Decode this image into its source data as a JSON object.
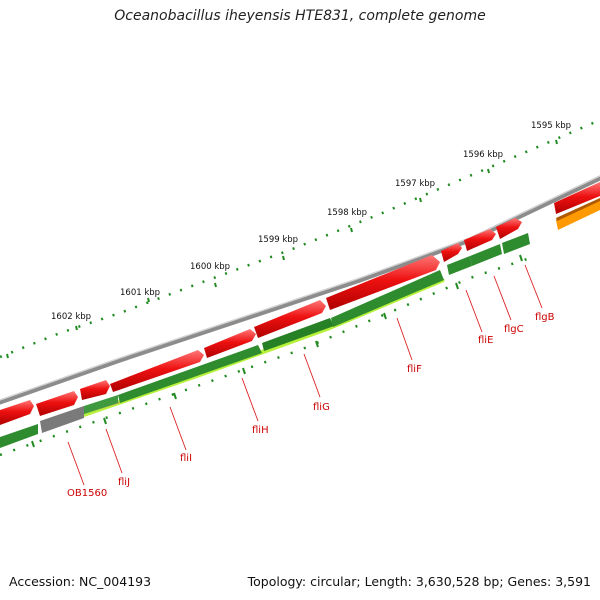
{
  "title": "Oceanobacillus iheyensis HTE831, complete genome",
  "footer": {
    "accession": "Accession: NC_004193",
    "summary": "Topology: circular; Length: 3,630,528 bp; Genes: 3,591"
  },
  "kbp_labels": [
    "1595 kbp",
    "1596 kbp",
    "1597 kbp",
    "1598 kbp",
    "1599 kbp",
    "1600 kbp",
    "1601 kbp",
    "1602 kbp"
  ],
  "gene_labels": [
    "flgB",
    "flgC",
    "fliE",
    "fliF",
    "fliG",
    "fliH",
    "fliI",
    "fliJ",
    "OB1560"
  ],
  "colors": {
    "cds_forward": "#ee1111",
    "gene_track": "#2e8b2e",
    "gene_track_light": "#b7f03a",
    "hypothetical": "#808080",
    "highlight": "#ff9900",
    "ruler_ticks": "#228b22",
    "label": "#cc0000",
    "backbone": "#8c8c8c"
  }
}
